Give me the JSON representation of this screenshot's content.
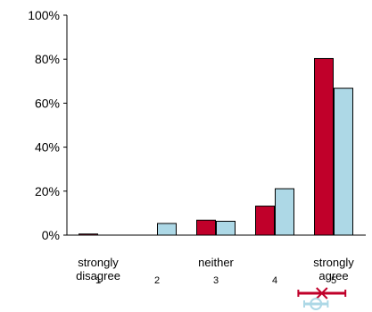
{
  "chart_data": {
    "type": "bar",
    "categories": [
      "1",
      "2",
      "3",
      "4",
      "5"
    ],
    "category_labels": [
      "1",
      "2",
      "3",
      "4",
      "5"
    ],
    "anchor_labels": [
      {
        "category_index": 0,
        "lines": [
          "strongly",
          "disagree"
        ]
      },
      {
        "category_index": 2,
        "lines": [
          "neither"
        ]
      },
      {
        "category_index": 4,
        "lines": [
          "strongly",
          "agree"
        ]
      }
    ],
    "series": [
      {
        "color": "#c0002a",
        "values": [
          0.5,
          0,
          6.8,
          13.2,
          80.3
        ]
      },
      {
        "color": "#add8e6",
        "values": [
          0,
          5.3,
          6.3,
          21.1,
          66.8
        ]
      }
    ],
    "ylim": [
      0,
      100
    ],
    "yticks": [
      0,
      20,
      40,
      60,
      80,
      100
    ],
    "ytick_labels": [
      "0%",
      "20%",
      "40%",
      "60%",
      "80%",
      "100%"
    ],
    "grid": false,
    "markers": [
      {
        "series_index": 0,
        "shape": "x",
        "center": 4.8,
        "interval": [
          4.4,
          5.2
        ]
      },
      {
        "series_index": 1,
        "shape": "circle",
        "center": 4.7,
        "interval": [
          4.5,
          4.9
        ]
      }
    ]
  }
}
